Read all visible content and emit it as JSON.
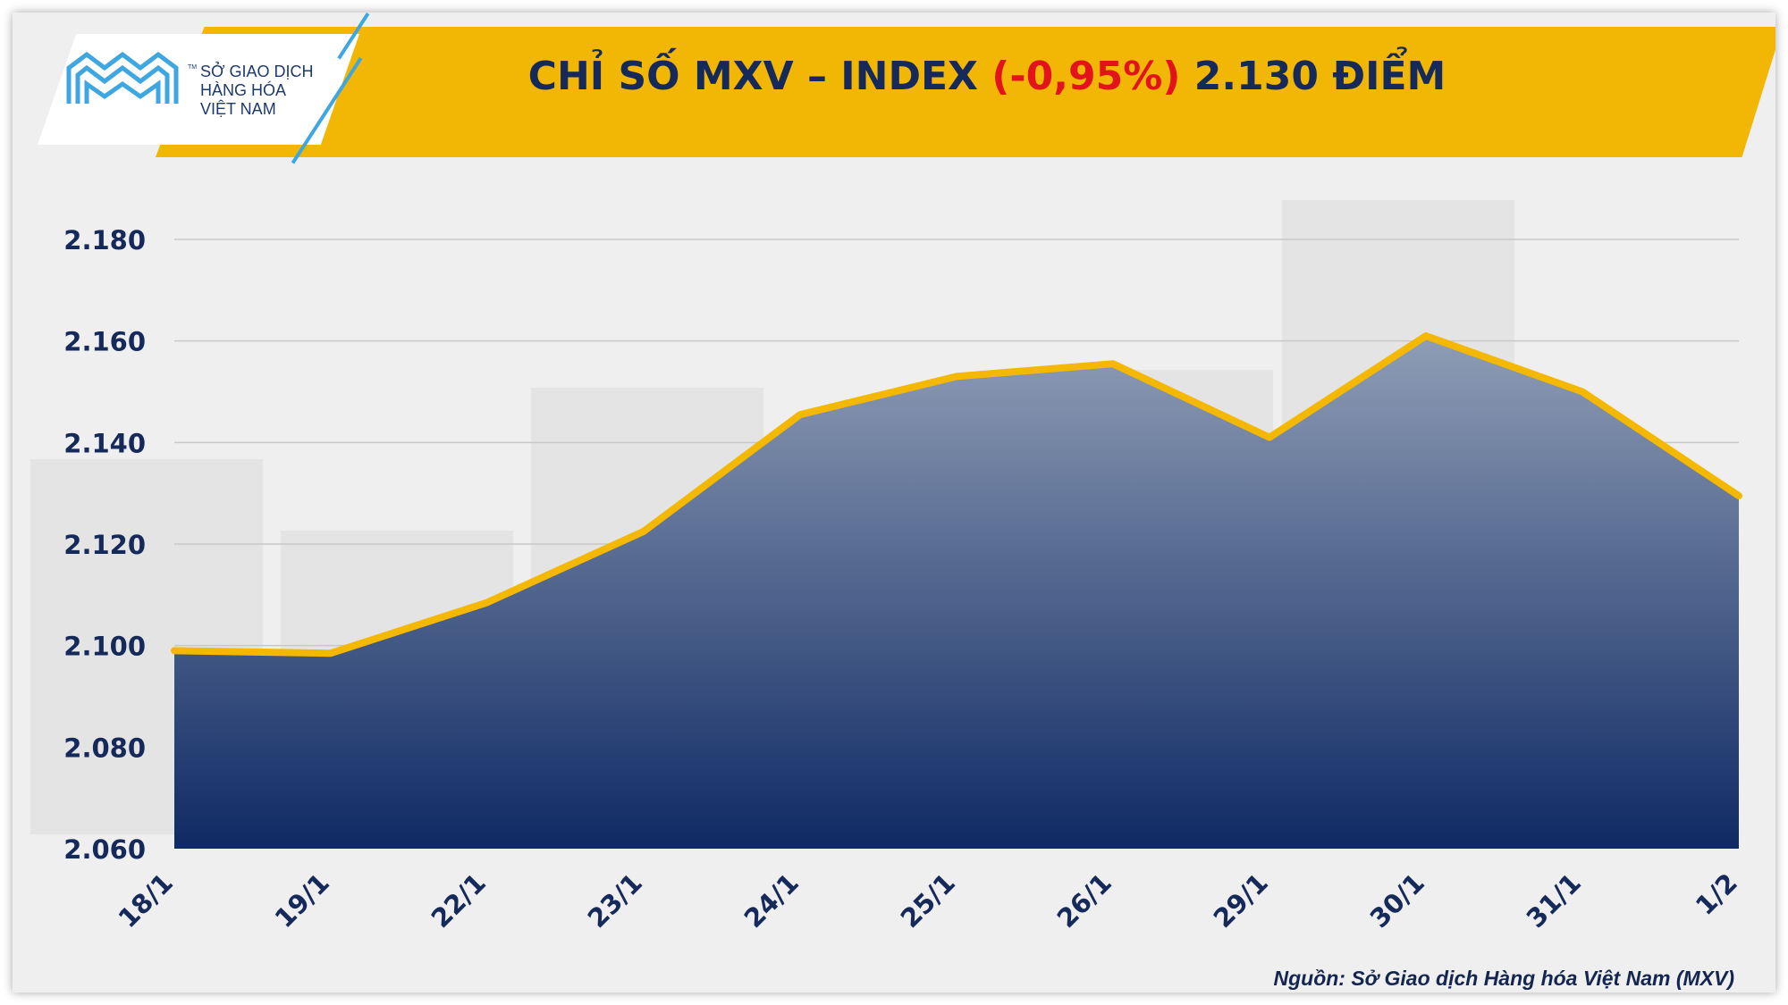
{
  "brand": {
    "name_line1": "SỞ GIAO DỊCH",
    "name_line2": "HÀNG HÓA",
    "name_line3": "VIỆT NAM",
    "tm": "TM",
    "logo_color": "#3ea6e0"
  },
  "title": {
    "prefix": "CHỈ SỐ MXV – INDEX ",
    "change": "(-0,95%)",
    "suffix": " 2.130 ĐIỂM"
  },
  "source": "Nguồn: Sở Giao dịch Hàng hóa Việt Nam (MXV)",
  "colors": {
    "banner": "#f2b705",
    "title_text": "#15295a",
    "change_text": "#e3131b",
    "line": "#f5b800",
    "area_top": "#8f9db5",
    "area_bottom": "#0f2a64",
    "axis_text": "#15295a",
    "grid": "#c8c8c8"
  },
  "chart_data": {
    "type": "area",
    "categories": [
      "18/1",
      "19/1",
      "22/1",
      "23/1",
      "24/1",
      "25/1",
      "26/1",
      "29/1",
      "30/1",
      "31/1",
      "1/2"
    ],
    "values": [
      2099,
      2098.5,
      2108.5,
      2122.5,
      2145.5,
      2153,
      2155.5,
      2141,
      2161,
      2150,
      2129.5
    ],
    "ylim": [
      2060,
      2180
    ],
    "yticks": [
      2060,
      2080,
      2100,
      2120,
      2140,
      2160,
      2180
    ],
    "ytick_labels": [
      "2.060",
      "2.080",
      "2.100",
      "2.120",
      "2.140",
      "2.160",
      "2.180"
    ],
    "grid": true,
    "legend": "none"
  }
}
